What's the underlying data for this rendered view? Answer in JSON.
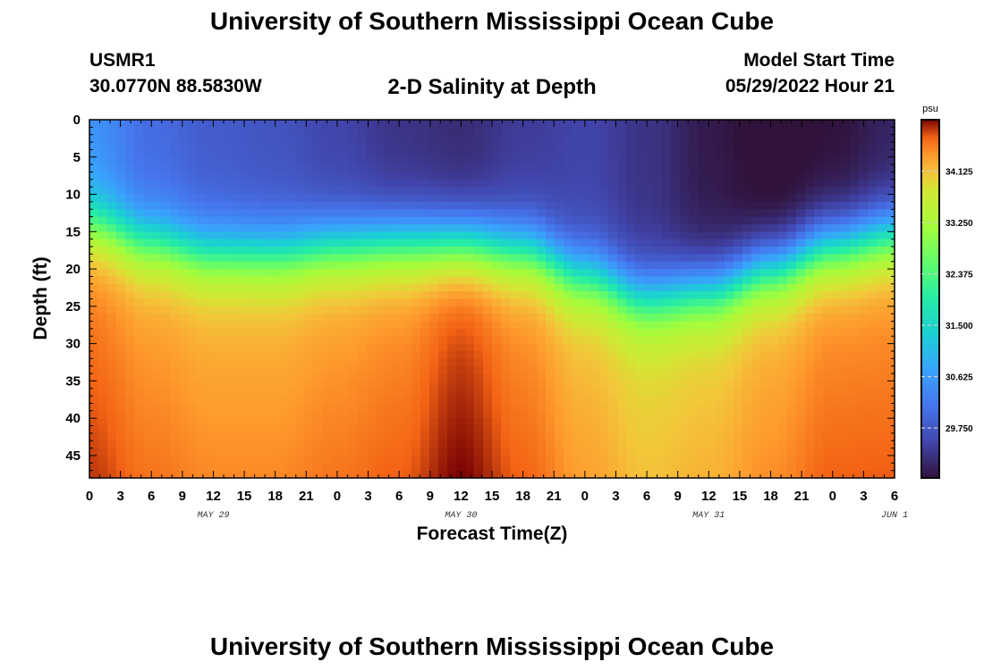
{
  "header": {
    "title": "University of Southern Mississippi Ocean Cube",
    "station_id": "USMR1",
    "coordinates": "30.0770N  88.5830W",
    "plot_title": "2-D Salinity at Depth",
    "model_start_label": "Model Start Time",
    "model_start_time": "05/29/2022 Hour 21"
  },
  "footer": {
    "title": "University of Southern Mississippi Ocean Cube"
  },
  "chart_data": {
    "type": "heatmap",
    "title": "2-D Salinity at Depth",
    "xlabel": "Forecast Time(Z)",
    "ylabel": "Depth (ft)",
    "x_tick_labels": [
      "0",
      "3",
      "6",
      "9",
      "12",
      "15",
      "18",
      "21",
      "0",
      "3",
      "6",
      "9",
      "12",
      "15",
      "18",
      "21",
      "0",
      "3",
      "6",
      "9",
      "12",
      "15",
      "18",
      "21",
      "0",
      "3",
      "6"
    ],
    "x_range_hours": [
      0,
      78
    ],
    "day_labels": [
      {
        "label": "MAY 29",
        "hour": 12
      },
      {
        "label": "MAY 30",
        "hour": 36
      },
      {
        "label": "MAY 31",
        "hour": 60
      },
      {
        "label": "JUN 1",
        "hour": 78
      }
    ],
    "y_ticks": [
      0,
      5,
      10,
      15,
      20,
      25,
      30,
      35,
      40,
      45
    ],
    "y_range_ft": [
      0,
      48
    ],
    "y_inverted": true,
    "colorbar": {
      "unit": "psu",
      "ticks": [
        34.125,
        33.25,
        32.375,
        31.5,
        30.625,
        29.75
      ],
      "tick_labels": [
        "34.125",
        "33.250",
        "32.375",
        "31.500",
        "30.625",
        "29.750"
      ],
      "range": [
        28.9,
        35.0
      ]
    },
    "halocline_depth_ft": {
      "hours": [
        0,
        6,
        12,
        18,
        24,
        30,
        36,
        42,
        48,
        54,
        60,
        66,
        72,
        78
      ],
      "depth": [
        14,
        16.5,
        18,
        18,
        17,
        16.5,
        16.5,
        17.5,
        21,
        24,
        23,
        20,
        17,
        15.5
      ]
    },
    "surface_salinity_psu": {
      "hours": [
        0,
        6,
        12,
        18,
        24,
        30,
        36,
        42,
        48,
        54,
        60,
        66,
        72,
        78
      ],
      "values": [
        30.5,
        30.0,
        29.8,
        29.7,
        29.5,
        29.3,
        29.2,
        29.4,
        29.5,
        29.3,
        29.0,
        28.8,
        28.9,
        29.1
      ]
    },
    "bottom_salinity_psu": {
      "hours": [
        0,
        6,
        12,
        18,
        24,
        30,
        36,
        42,
        48,
        54,
        60,
        66,
        72,
        78
      ],
      "values": [
        34.5,
        34.3,
        34.2,
        34.2,
        34.3,
        34.4,
        34.7,
        34.4,
        34.1,
        33.9,
        34.0,
        34.2,
        34.4,
        34.4
      ]
    }
  }
}
